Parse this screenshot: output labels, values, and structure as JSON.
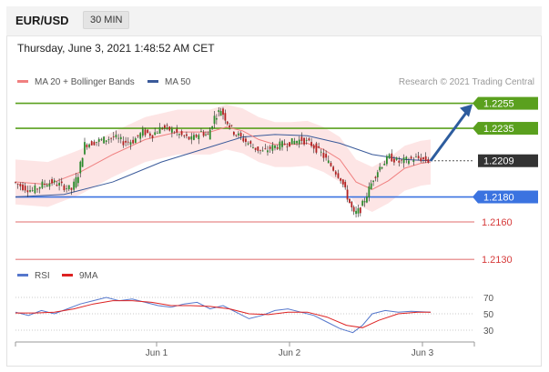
{
  "header": {
    "pair": "EUR/USD",
    "timeframe": "30 MIN"
  },
  "datetime": "Thursday, June 3, 2021 1:48:52 AM CET",
  "legend": {
    "ma20": "MA 20 + Bollinger Bands",
    "ma50": "MA 50",
    "credit": "Research © 2021 Trading Central"
  },
  "rsi_legend": {
    "rsi": "RSI",
    "ma9": "9MA"
  },
  "colors": {
    "ma20": "#f08080",
    "ma50": "#3a5a9a",
    "resistance": "#5aa01e",
    "support": "#3b73e0",
    "support_minor": "#d63a3a",
    "current": "#333333",
    "arrow": "#2d5c9e",
    "bollinger_fill": "#fde0e0"
  },
  "chart_data": [
    {
      "type": "line",
      "title": "EUR/USD 30 MIN",
      "ylim": [
        2.1125,
        1.2262
      ],
      "x_ticks": [
        "Jun 1",
        "Jun 2",
        "Jun 3"
      ],
      "levels": [
        {
          "value": 1.2255,
          "label": "1.2255",
          "kind": "resistance"
        },
        {
          "value": 1.2235,
          "label": "1.2235",
          "kind": "resistance"
        },
        {
          "value": 1.2209,
          "label": "1.2209",
          "kind": "current"
        },
        {
          "value": 1.218,
          "label": "1.2180",
          "kind": "support"
        },
        {
          "value": 1.216,
          "label": "1.2160",
          "kind": "support_minor"
        },
        {
          "value": 1.213,
          "label": "1.2130",
          "kind": "support_minor"
        }
      ],
      "price_path": [
        [
          0,
          1.2192
        ],
        [
          6,
          1.2188
        ],
        [
          12,
          1.2185
        ],
        [
          18,
          1.219
        ],
        [
          24,
          1.2192
        ],
        [
          30,
          1.2189
        ],
        [
          36,
          1.2186
        ],
        [
          40,
          1.2198
        ],
        [
          44,
          1.2222
        ],
        [
          50,
          1.2224
        ],
        [
          56,
          1.2226
        ],
        [
          62,
          1.2228
        ],
        [
          68,
          1.2224
        ],
        [
          74,
          1.2225
        ],
        [
          80,
          1.2232
        ],
        [
          86,
          1.223
        ],
        [
          92,
          1.2236
        ],
        [
          98,
          1.2233
        ],
        [
          104,
          1.2229
        ],
        [
          110,
          1.2226
        ],
        [
          116,
          1.2232
        ],
        [
          120,
          1.2229
        ],
        [
          124,
          1.2244
        ],
        [
          128,
          1.225
        ],
        [
          132,
          1.224
        ],
        [
          136,
          1.2232
        ],
        [
          142,
          1.2226
        ],
        [
          148,
          1.222
        ],
        [
          154,
          1.2216
        ],
        [
          160,
          1.222
        ],
        [
          166,
          1.2222
        ],
        [
          172,
          1.2224
        ],
        [
          178,
          1.2226
        ],
        [
          184,
          1.2222
        ],
        [
          190,
          1.2215
        ],
        [
          196,
          1.2205
        ],
        [
          202,
          1.2195
        ],
        [
          206,
          1.218
        ],
        [
          210,
          1.2166
        ],
        [
          214,
          1.217
        ],
        [
          218,
          1.2182
        ],
        [
          222,
          1.2195
        ],
        [
          226,
          1.2204
        ],
        [
          232,
          1.2212
        ],
        [
          238,
          1.2208
        ],
        [
          244,
          1.221
        ],
        [
          250,
          1.2211
        ],
        [
          256,
          1.2209
        ]
      ],
      "ma20": [
        [
          0,
          1.2192
        ],
        [
          20,
          1.219
        ],
        [
          40,
          1.22
        ],
        [
          60,
          1.2214
        ],
        [
          80,
          1.2226
        ],
        [
          100,
          1.2232
        ],
        [
          120,
          1.2232
        ],
        [
          130,
          1.2236
        ],
        [
          140,
          1.2233
        ],
        [
          150,
          1.2226
        ],
        [
          160,
          1.2222
        ],
        [
          170,
          1.2222
        ],
        [
          180,
          1.2223
        ],
        [
          190,
          1.2218
        ],
        [
          200,
          1.221
        ],
        [
          210,
          1.2192
        ],
        [
          220,
          1.2186
        ],
        [
          230,
          1.2193
        ],
        [
          240,
          1.2203
        ],
        [
          250,
          1.2207
        ],
        [
          256,
          1.2208
        ]
      ],
      "ma50": [
        [
          0,
          1.218
        ],
        [
          30,
          1.2182
        ],
        [
          60,
          1.2192
        ],
        [
          90,
          1.2208
        ],
        [
          120,
          1.222
        ],
        [
          140,
          1.2228
        ],
        [
          160,
          1.223
        ],
        [
          180,
          1.2229
        ],
        [
          200,
          1.2223
        ],
        [
          220,
          1.2214
        ],
        [
          240,
          1.221
        ],
        [
          256,
          1.2209
        ]
      ],
      "bollinger_band_width": 0.0018
    },
    {
      "type": "line",
      "title": "RSI",
      "ylim": [
        20,
        80
      ],
      "y_ticks": [
        70,
        50,
        30
      ],
      "rsi": [
        [
          0,
          52
        ],
        [
          8,
          48
        ],
        [
          16,
          54
        ],
        [
          24,
          50
        ],
        [
          32,
          56
        ],
        [
          40,
          62
        ],
        [
          48,
          66
        ],
        [
          56,
          70
        ],
        [
          64,
          66
        ],
        [
          72,
          68
        ],
        [
          80,
          64
        ],
        [
          88,
          60
        ],
        [
          96,
          58
        ],
        [
          104,
          62
        ],
        [
          112,
          64
        ],
        [
          120,
          56
        ],
        [
          128,
          60
        ],
        [
          136,
          52
        ],
        [
          144,
          44
        ],
        [
          152,
          48
        ],
        [
          160,
          54
        ],
        [
          168,
          56
        ],
        [
          176,
          52
        ],
        [
          184,
          48
        ],
        [
          192,
          40
        ],
        [
          200,
          32
        ],
        [
          208,
          27
        ],
        [
          214,
          36
        ],
        [
          220,
          50
        ],
        [
          228,
          54
        ],
        [
          236,
          52
        ],
        [
          244,
          53
        ],
        [
          256,
          52
        ]
      ],
      "ma9": [
        [
          0,
          51
        ],
        [
          12,
          51
        ],
        [
          24,
          52
        ],
        [
          36,
          56
        ],
        [
          48,
          62
        ],
        [
          60,
          66
        ],
        [
          72,
          66
        ],
        [
          84,
          64
        ],
        [
          96,
          60
        ],
        [
          108,
          60
        ],
        [
          120,
          59
        ],
        [
          132,
          56
        ],
        [
          144,
          50
        ],
        [
          156,
          49
        ],
        [
          168,
          52
        ],
        [
          180,
          52
        ],
        [
          192,
          46
        ],
        [
          204,
          36
        ],
        [
          214,
          33
        ],
        [
          224,
          42
        ],
        [
          236,
          50
        ],
        [
          248,
          52
        ],
        [
          256,
          52
        ]
      ]
    }
  ]
}
